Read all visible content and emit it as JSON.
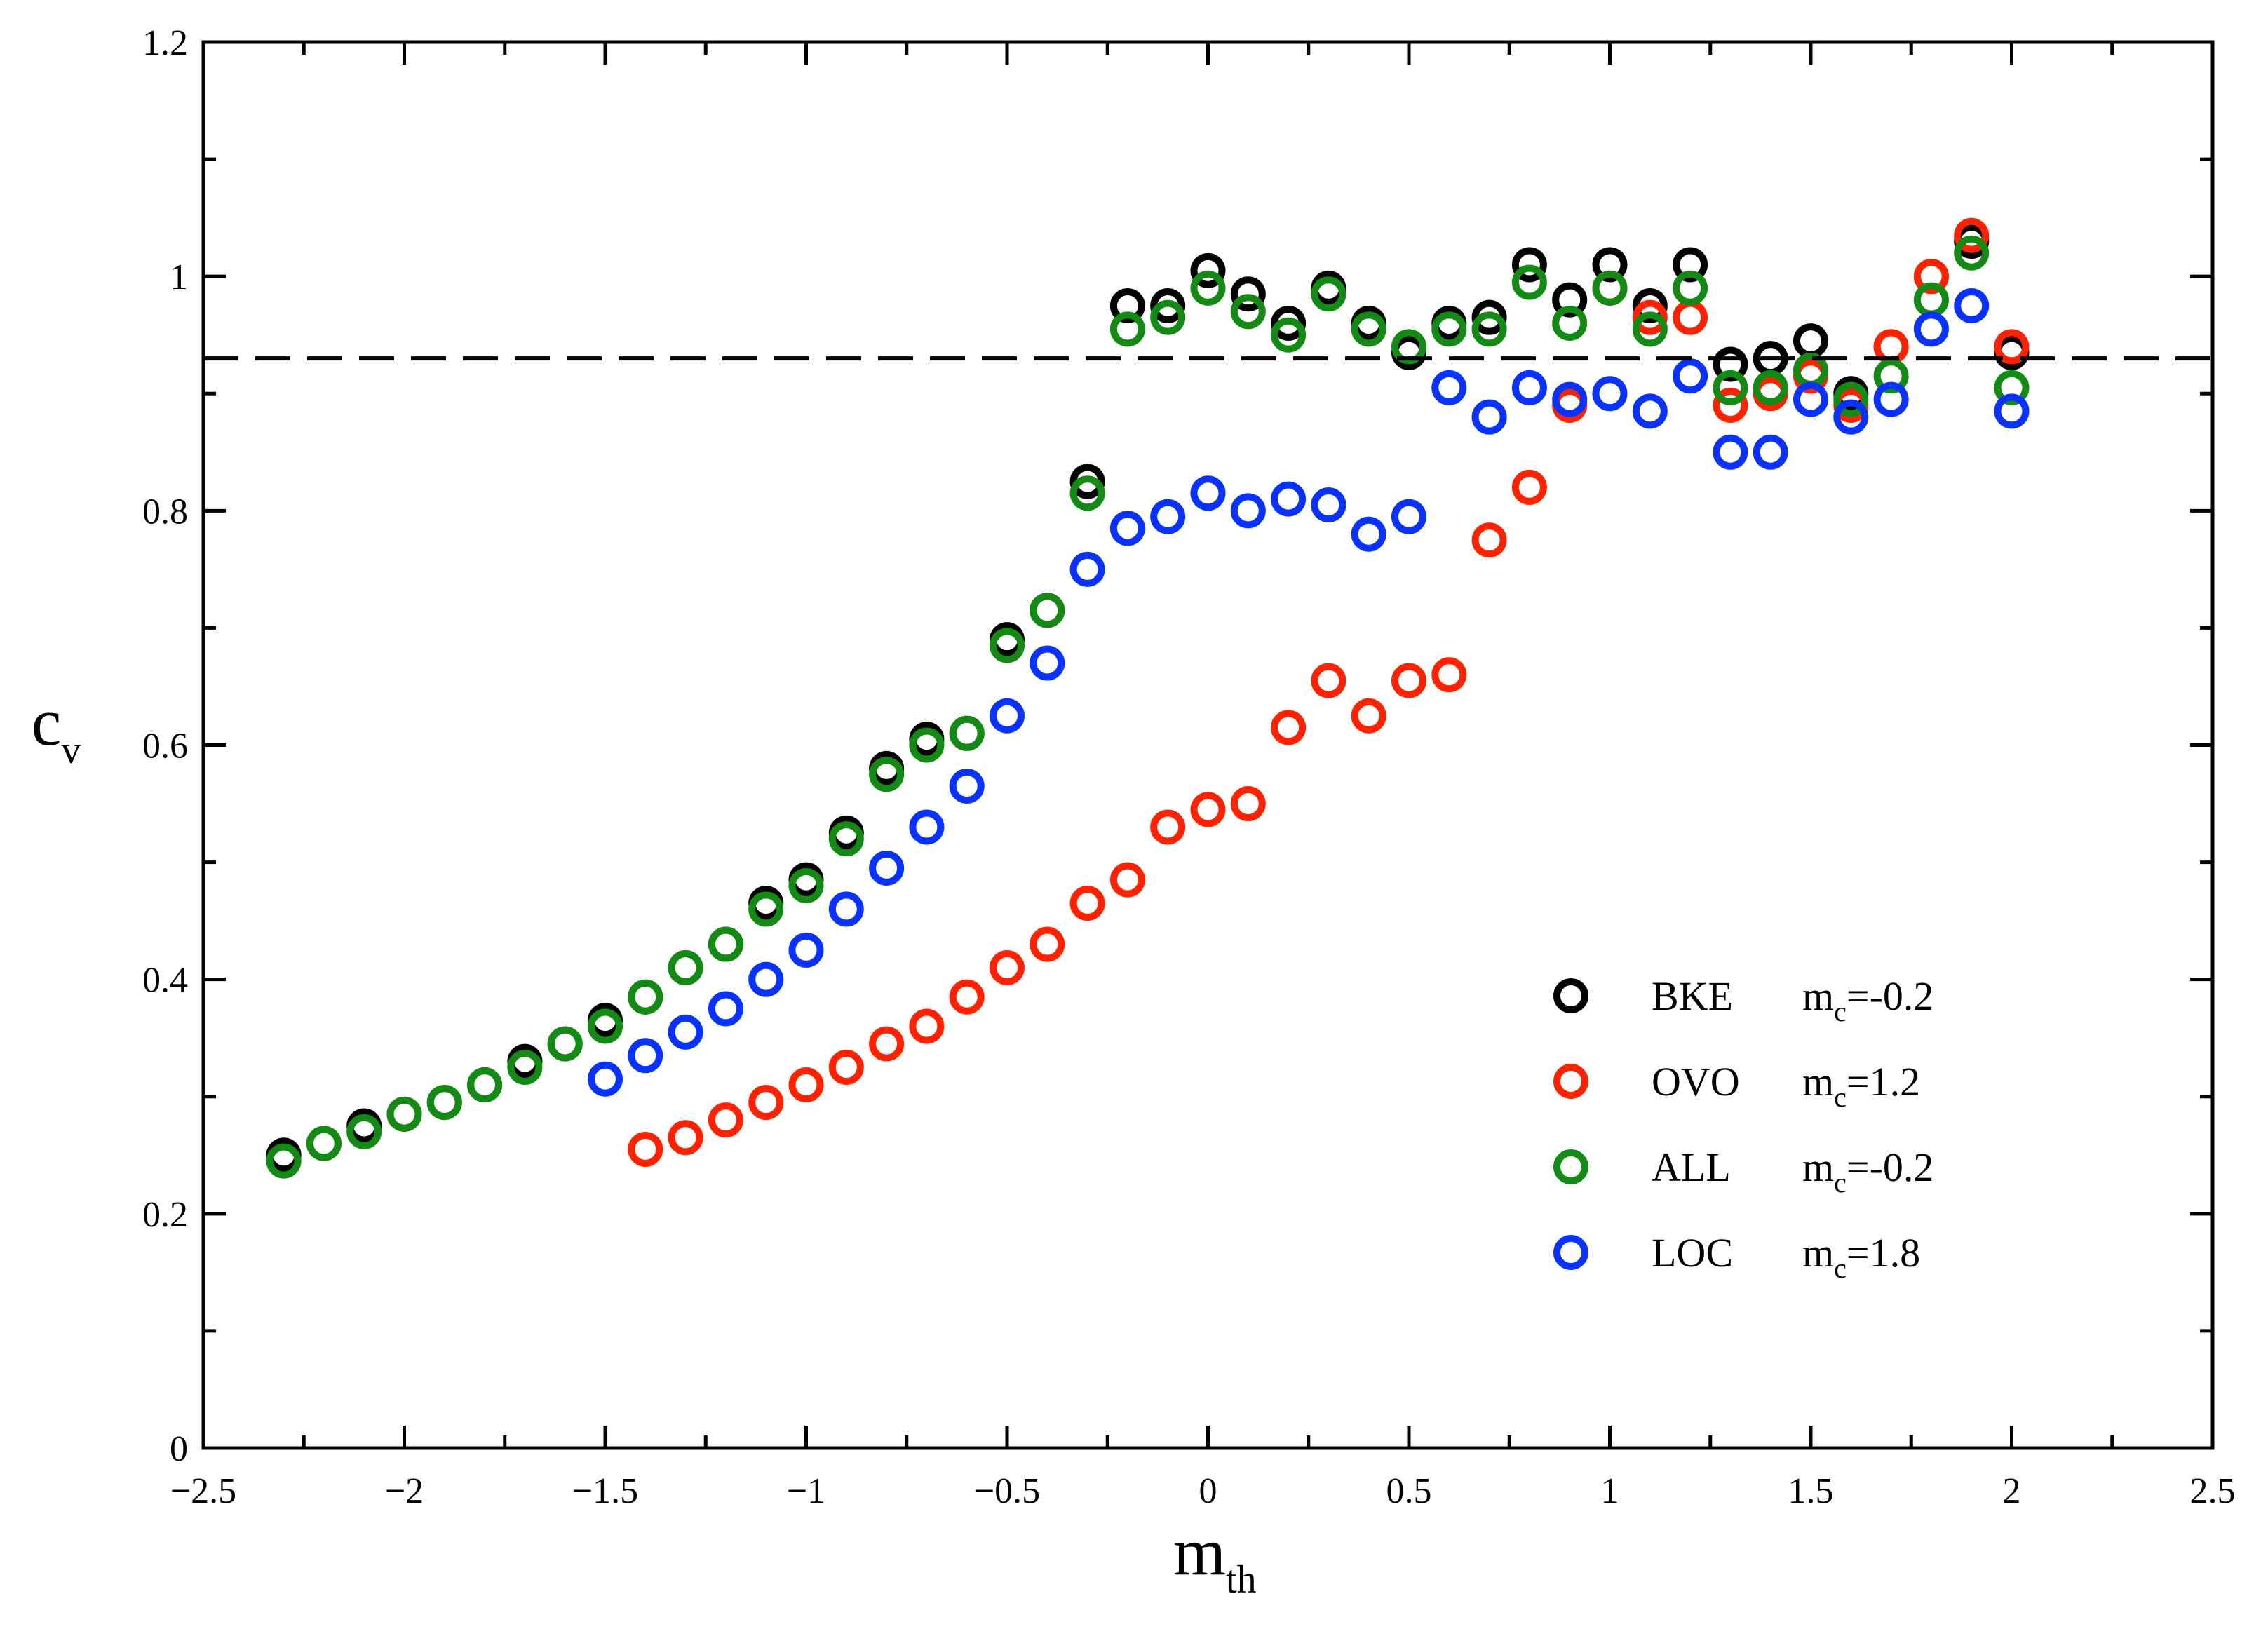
{
  "chart_data": {
    "type": "scatter",
    "xlabel": "m",
    "xlabel_sub": "th",
    "ylabel": "c",
    "ylabel_sub": "v",
    "xlim": [
      -2.5,
      2.5
    ],
    "ylim": [
      0,
      1.2
    ],
    "x_ticks": [
      -2.5,
      -2,
      -1.5,
      -1,
      -0.5,
      0,
      0.5,
      1,
      1.5,
      2,
      2.5
    ],
    "x_tick_labels": [
      "-2.5",
      "-2",
      "-1.5",
      "-1",
      "-0.5",
      "0",
      "0.5",
      "1",
      "1.5",
      "2",
      "2.5"
    ],
    "y_ticks": [
      0,
      0.2,
      0.4,
      0.6,
      0.8,
      1,
      1.2
    ],
    "y_tick_labels": [
      "0",
      "0.2",
      "0.4",
      "0.6",
      "0.8",
      "1",
      "1.2"
    ],
    "grid": false,
    "reference_line": {
      "y": 0.93,
      "style": "dashed",
      "color": "#000000"
    },
    "legend_position": "lower-right",
    "series": [
      {
        "name": "BKE",
        "param_symbol": "m",
        "param_sub": "c",
        "param_value": "=-0.2",
        "color": "#000000",
        "x": [
          -2.3,
          -2.2,
          -2.1,
          -2.0,
          -1.9,
          -1.8,
          -1.7,
          -1.6,
          -1.5,
          -1.4,
          -1.3,
          -1.2,
          -1.1,
          -1.0,
          -0.9,
          -0.8,
          -0.7,
          -0.6,
          -0.5,
          -0.4,
          -0.3,
          -0.2,
          -0.1,
          0.0,
          0.1,
          0.2,
          0.3,
          0.4,
          0.5,
          0.6,
          0.7,
          0.8,
          0.9,
          1.0,
          1.1,
          1.2,
          1.3,
          1.4,
          1.5,
          1.6,
          1.7,
          1.8,
          1.9,
          2.0
        ],
        "y": [
          0.25,
          0.26,
          0.275,
          0.285,
          0.295,
          0.31,
          0.33,
          0.345,
          0.365,
          0.385,
          0.41,
          0.43,
          0.465,
          0.485,
          0.525,
          0.58,
          0.605,
          0.61,
          0.69,
          0.715,
          0.825,
          0.975,
          0.975,
          1.005,
          0.985,
          0.96,
          0.99,
          0.96,
          0.935,
          0.96,
          0.965,
          1.01,
          0.98,
          1.01,
          0.975,
          1.01,
          0.925,
          0.93,
          0.945,
          0.9,
          0.94,
          1.0,
          1.03,
          0.935
        ]
      },
      {
        "name": "OVO",
        "param_symbol": "m",
        "param_sub": "c",
        "param_value": "=1.2",
        "color": "#ff2200",
        "x": [
          -1.4,
          -1.3,
          -1.2,
          -1.1,
          -1.0,
          -0.9,
          -0.8,
          -0.7,
          -0.6,
          -0.5,
          -0.4,
          -0.3,
          -0.2,
          -0.1,
          0.0,
          0.1,
          0.2,
          0.3,
          0.4,
          0.5,
          0.6,
          0.7,
          0.8,
          0.9,
          1.0,
          1.1,
          1.2,
          1.3,
          1.4,
          1.5,
          1.6,
          1.7,
          1.8,
          1.9,
          2.0
        ],
        "y": [
          0.255,
          0.265,
          0.28,
          0.295,
          0.31,
          0.325,
          0.345,
          0.36,
          0.385,
          0.41,
          0.43,
          0.465,
          0.485,
          0.53,
          0.545,
          0.55,
          0.615,
          0.655,
          0.625,
          0.655,
          0.66,
          0.775,
          0.82,
          0.89,
          0.99,
          0.965,
          0.965,
          0.89,
          0.9,
          0.915,
          0.89,
          0.94,
          1.0,
          1.035,
          0.94
        ]
      },
      {
        "name": "ALL",
        "param_symbol": "m",
        "param_sub": "c",
        "param_value": "=-0.2",
        "color": "#138a13",
        "x": [
          -2.3,
          -2.2,
          -2.1,
          -2.0,
          -1.9,
          -1.8,
          -1.7,
          -1.6,
          -1.5,
          -1.4,
          -1.3,
          -1.2,
          -1.1,
          -1.0,
          -0.9,
          -0.8,
          -0.7,
          -0.6,
          -0.5,
          -0.4,
          -0.3,
          -0.2,
          -0.1,
          0.0,
          0.1,
          0.2,
          0.3,
          0.4,
          0.5,
          0.6,
          0.7,
          0.8,
          0.9,
          1.0,
          1.1,
          1.2,
          1.3,
          1.4,
          1.5,
          1.6,
          1.7,
          1.8,
          1.9,
          2.0
        ],
        "y": [
          0.245,
          0.26,
          0.27,
          0.285,
          0.295,
          0.31,
          0.325,
          0.345,
          0.36,
          0.385,
          0.41,
          0.43,
          0.46,
          0.48,
          0.52,
          0.575,
          0.6,
          0.61,
          0.685,
          0.715,
          0.815,
          0.955,
          0.965,
          0.99,
          0.97,
          0.95,
          0.985,
          0.955,
          0.94,
          0.955,
          0.955,
          0.995,
          0.96,
          0.99,
          0.955,
          0.99,
          0.905,
          0.905,
          0.92,
          0.895,
          0.915,
          0.98,
          1.02,
          0.905
        ]
      },
      {
        "name": "LOC",
        "param_symbol": "m",
        "param_sub": "c",
        "param_value": "=1.8",
        "color": "#0a32ff",
        "x": [
          -1.5,
          -1.4,
          -1.3,
          -1.2,
          -1.1,
          -1.0,
          -0.9,
          -0.8,
          -0.7,
          -0.6,
          -0.5,
          -0.4,
          -0.3,
          -0.2,
          -0.1,
          0.0,
          0.1,
          0.2,
          0.3,
          0.4,
          0.5,
          0.6,
          0.7,
          0.8,
          0.9,
          1.0,
          1.1,
          1.2,
          1.3,
          1.4,
          1.5,
          1.6,
          1.7,
          1.8,
          1.9,
          2.0
        ],
        "y": [
          0.315,
          0.335,
          0.355,
          0.375,
          0.4,
          0.425,
          0.46,
          0.495,
          0.53,
          0.565,
          0.625,
          0.67,
          0.75,
          0.785,
          0.795,
          0.815,
          0.8,
          0.81,
          0.805,
          0.78,
          0.795,
          0.905,
          0.88,
          0.905,
          0.895,
          0.9,
          0.885,
          0.915,
          0.85,
          0.85,
          0.895,
          0.88,
          0.895,
          0.955,
          0.975,
          0.885
        ]
      }
    ]
  }
}
